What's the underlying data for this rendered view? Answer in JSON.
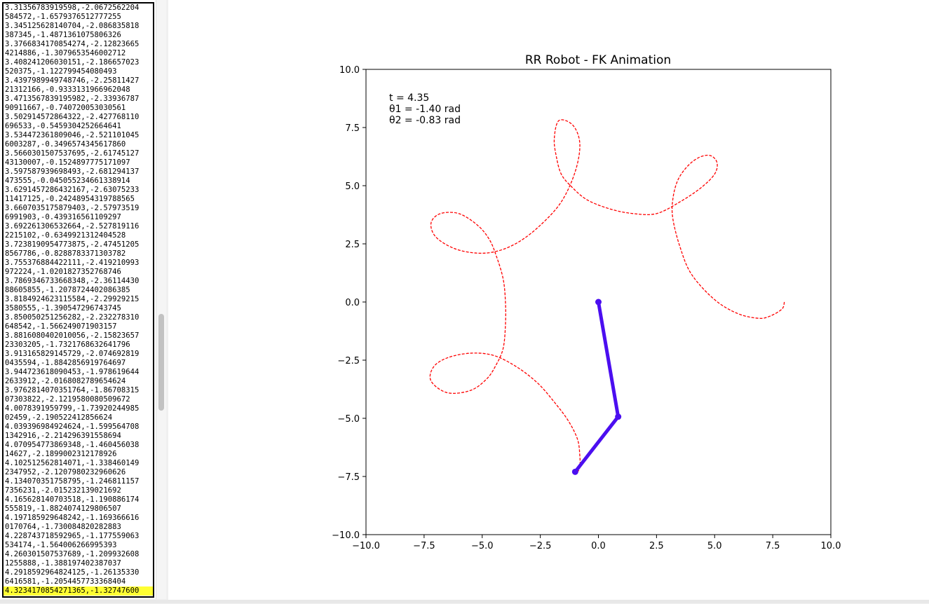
{
  "log": {
    "lines": [
      "3.31356783919598,-2.0672562204",
      "584572,-1.6579376512777255",
      "3.345125628140704,-2.086835818",
      "387345,-1.4871361075806326",
      "3.3766834170854274,-2.12823665",
      "4214886,-1.3079653546002712",
      "3.408241206030151,-2.186657023",
      "520375,-1.122799454080493",
      "3.4397989949748746,-2.25811427",
      "21312166,-0.9333131966962048",
      "3.4713567839195982,-2.33936787",
      "90911667,-0.740720053030561",
      "3.502914572864322,-2.427768110",
      "696533,-0.5459304252664641",
      "3.534472361809046,-2.521101045",
      "6003287,-0.3496574345617860",
      "3.5660301507537695,-2.61745127",
      "43130007,-0.1524897775171097",
      "3.597587939698493,-2.681294137",
      "473555,-0.045055234661338914",
      "3.6291457286432167,-2.63075233",
      "11417125,-0.24248954319788565",
      "3.6607035175879403,-2.57973519",
      "6991903,-0.439316561109297",
      "3.692261306532664,-2.527819116",
      "2215102,-0.6349921312404528",
      "3.7238190954773875,-2.47451205",
      "8567786,-0.8288783371303782",
      "3.755376884422111,-2.419210993",
      "972224,-1.0201827352768746",
      "3.7869346733668348,-2.36114430",
      "88605855,-1.2078724402086385",
      "3.8184924623115584,-2.29929215",
      "3580555,-1.390547296743745",
      "3.850050251256282,-2.232278310",
      "648542,-1.566249071903157",
      "3.8816080402010056,-2.15823657",
      "23303205,-1.7321768632641796",
      "3.913165829145729,-2.074692819",
      "0435594,-1.8842856919764697",
      "3.944723618090453,-1.978619644",
      "2633912,-2.0168082789654624",
      "3.9762814070351764,-1.86708315",
      "07303822,-2.1219580080509672",
      "4.0078391959799,-1.73920244985",
      "02459,-2.190522412856624",
      "4.039396984924624,-1.599564708",
      "1342916,-2.214296391558694",
      "4.070954773869348,-1.460456038",
      "14627,-2.1899002312178926",
      "4.102512562814071,-1.338460149",
      "2347952,-2.1207980232960626",
      "4.134070351758795,-1.246811157",
      "7356231,-2.015232139021692",
      "4.165628140703518,-1.190886174",
      "555819,-1.8824074129806507",
      "4.197185929648242,-1.169366616",
      "0170764,-1.730084820282883",
      "4.228743718592965,-1.177559063",
      "534174,-1.564006266995393",
      "4.260301507537689,-1.209932608",
      "1255888,-1.388197402387037",
      "4.2918592964824125,-1.26135330",
      "6416581,-1.2054457733368404",
      "4.3234170854271365,-1.32747600"
    ],
    "highlighted_index": 64,
    "highlight_color": "#ffff33"
  },
  "plot": {
    "title": "RR Robot - FK Animation",
    "info_t": "t = 4.35",
    "info_theta1": "θ1 = -1.40 rad",
    "info_theta2": "θ2 = -0.83 rad",
    "x_ticks": [
      "−10.0",
      "−7.5",
      "−5.0",
      "−2.5",
      "0.0",
      "2.5",
      "5.0",
      "7.5",
      "10.0"
    ],
    "y_ticks": [
      "10.0",
      "7.5",
      "5.0",
      "2.5",
      "0.0",
      "−2.5",
      "−5.0",
      "−7.5",
      "−10.0"
    ],
    "trace_color": "#ff0000",
    "arm_color": "#4b0ef0"
  },
  "chart_data": {
    "type": "line",
    "title": "RR Robot - FK Animation",
    "xlim": [
      -10,
      10
    ],
    "ylim": [
      -10,
      10
    ],
    "grid": false,
    "series": [
      {
        "style": "dashed",
        "color": "#ff0000",
        "x": [
          8.0,
          7.9,
          7.4,
          6.9,
          6.0,
          5.0,
          4.0,
          3.5,
          3.2,
          3.2,
          3.4,
          3.8,
          4.3,
          4.8,
          5.1,
          5.0,
          4.4,
          3.5,
          2.5,
          1.5,
          0.5,
          -0.5,
          -1.2,
          -1.6,
          -1.8,
          -1.9,
          -1.7,
          -1.1,
          -0.8,
          -1.0,
          -1.6,
          -2.5,
          -3.4,
          -4.3,
          -5.2,
          -6.2,
          -7.0,
          -7.2,
          -6.8,
          -6.0,
          -5.2,
          -4.7,
          -4.4,
          -4.1,
          -4.0,
          -4.0,
          -4.1,
          -4.4,
          -4.8,
          -5.5,
          -6.5,
          -7.2,
          -7.1,
          -6.5,
          -5.5,
          -4.5,
          -3.5,
          -2.6,
          -1.9,
          -1.3,
          -0.9,
          -0.8,
          -0.8,
          -0.9,
          -1.0
        ],
        "y": [
          0.0,
          -0.3,
          -0.6,
          -0.7,
          -0.5,
          0.1,
          1.2,
          2.4,
          3.6,
          4.4,
          5.2,
          5.8,
          6.2,
          6.3,
          6.0,
          5.5,
          4.9,
          4.3,
          3.8,
          3.8,
          4.0,
          4.4,
          5.0,
          5.5,
          6.2,
          7.0,
          7.8,
          7.6,
          6.8,
          5.6,
          4.3,
          3.3,
          2.6,
          2.2,
          2.1,
          2.3,
          2.8,
          3.4,
          3.8,
          3.8,
          3.3,
          2.7,
          2.0,
          1.0,
          0.0,
          -1.0,
          -2.0,
          -2.7,
          -3.3,
          -3.8,
          -3.9,
          -3.4,
          -2.8,
          -2.4,
          -2.2,
          -2.3,
          -2.8,
          -3.5,
          -4.3,
          -5.1,
          -5.9,
          -6.6,
          -7.1,
          -7.3,
          -7.3
        ]
      },
      {
        "style": "solid",
        "color": "#4b0ef0",
        "x": [
          0.0,
          0.85,
          -1.0
        ],
        "y": [
          0.0,
          -4.93,
          -7.3
        ]
      }
    ]
  }
}
